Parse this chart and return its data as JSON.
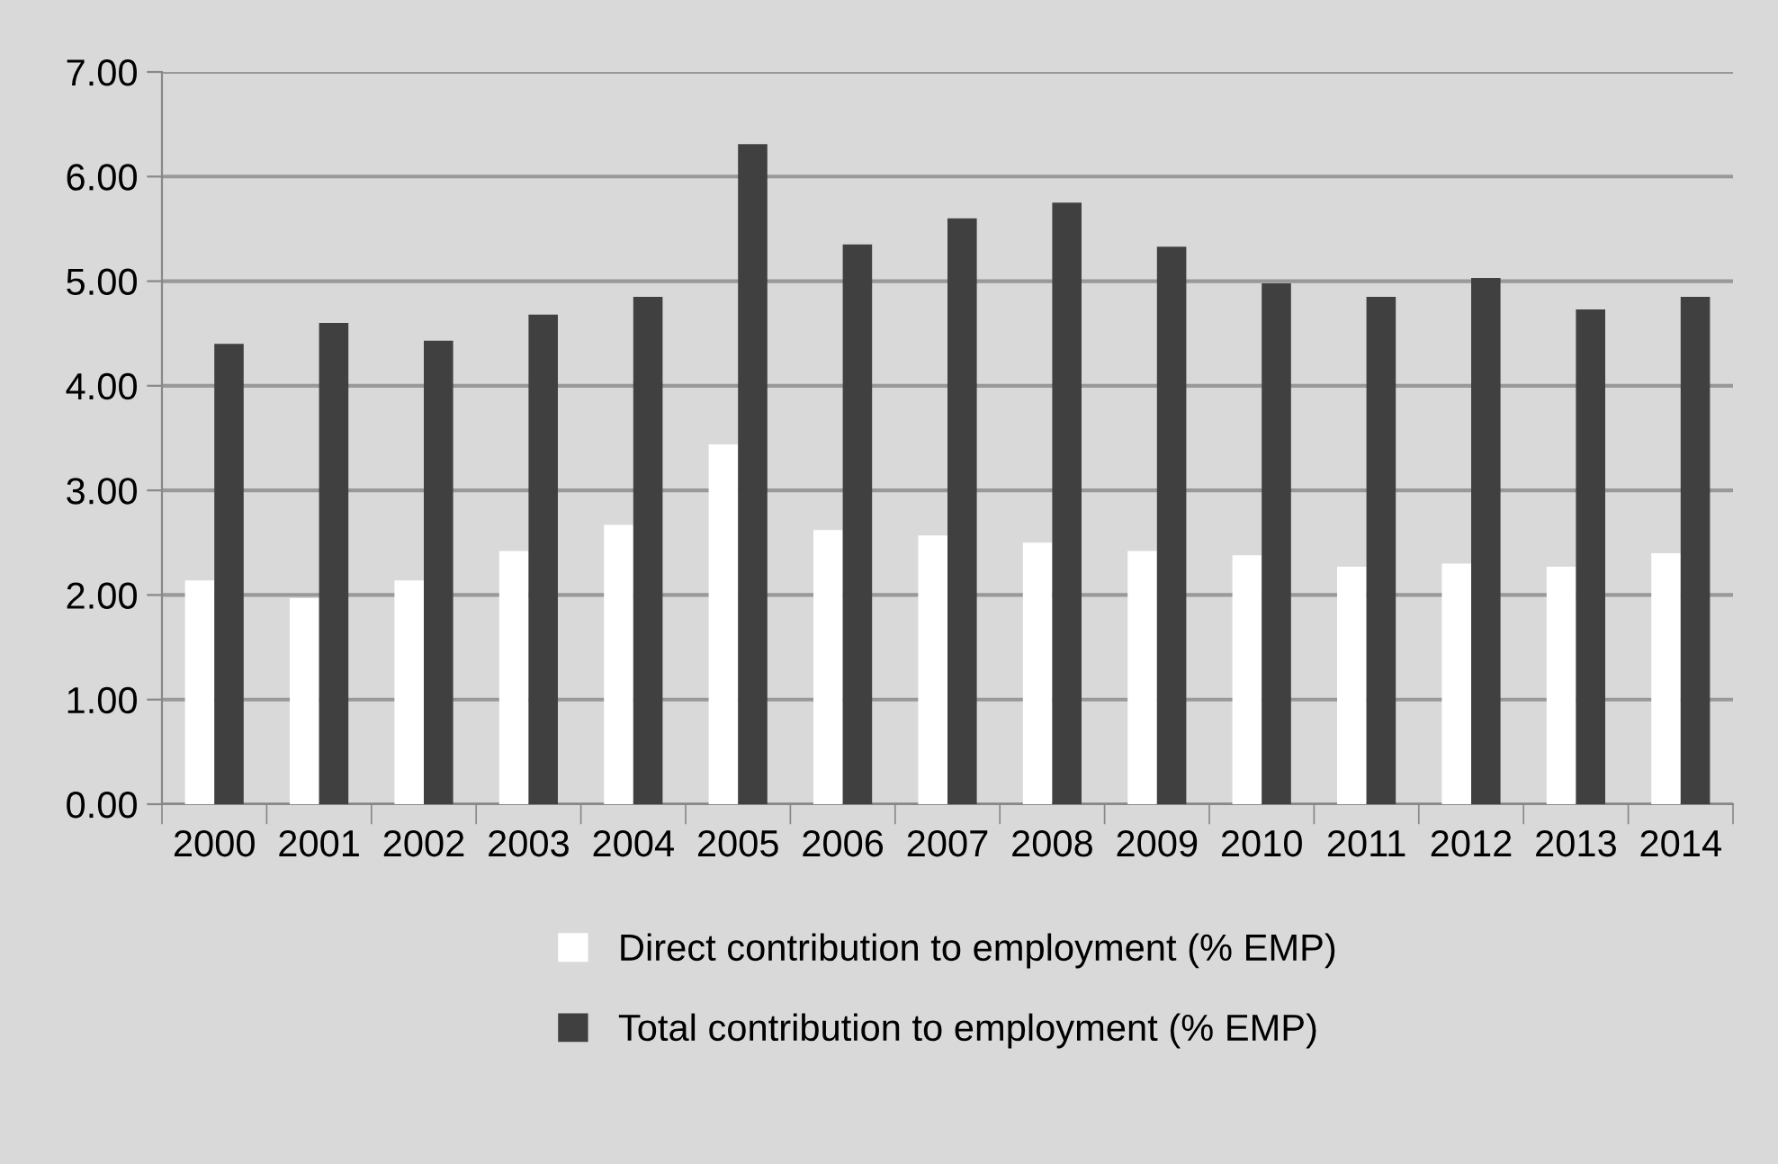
{
  "chart_data": {
    "type": "bar",
    "categories": [
      "2000",
      "2001",
      "2002",
      "2003",
      "2004",
      "2005",
      "2006",
      "2007",
      "2008",
      "2009",
      "2010",
      "2011",
      "2012",
      "2013",
      "2014"
    ],
    "series": [
      {
        "name": "Direct contribution to employment (% EMP)",
        "color": "#ffffff",
        "values": [
          2.14,
          1.97,
          2.14,
          2.42,
          2.67,
          3.44,
          2.62,
          2.57,
          2.5,
          2.42,
          2.38,
          2.27,
          2.3,
          2.27,
          2.4
        ]
      },
      {
        "name": "Total contribution to employment (% EMP)",
        "color": "#404040",
        "values": [
          4.4,
          4.6,
          4.43,
          4.68,
          4.85,
          6.31,
          5.35,
          5.6,
          5.75,
          5.33,
          4.98,
          4.85,
          5.03,
          4.73,
          4.85
        ]
      }
    ],
    "ylim": [
      0,
      7
    ],
    "yticks": [
      {
        "value": 0,
        "label": "0.00"
      },
      {
        "value": 1,
        "label": "1.00"
      },
      {
        "value": 2,
        "label": "2.00"
      },
      {
        "value": 3,
        "label": "3.00"
      },
      {
        "value": 4,
        "label": "4.00"
      },
      {
        "value": 5,
        "label": "5.00"
      },
      {
        "value": 6,
        "label": "6.00"
      },
      {
        "value": 7,
        "label": "7.00"
      }
    ],
    "grid": "y",
    "legend": "bottom"
  }
}
